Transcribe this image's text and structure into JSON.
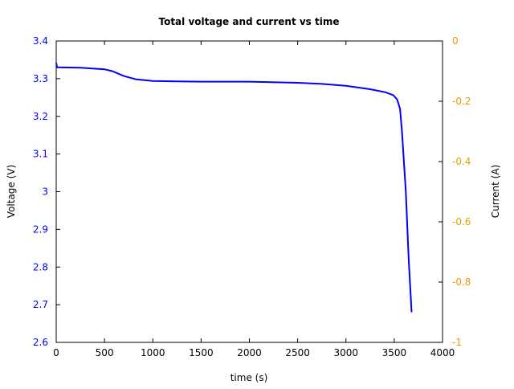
{
  "chart_data": {
    "type": "line",
    "title": "Total voltage and current vs time",
    "xlabel": "time (s)",
    "ylabel": "Voltage (V)",
    "y2label": "Current (A)",
    "xlim": [
      0,
      4000
    ],
    "ylim": [
      2.6,
      3.4
    ],
    "y2lim": [
      -1,
      0
    ],
    "xticks": [
      0,
      500,
      1000,
      1500,
      2000,
      2500,
      3000,
      3500,
      4000
    ],
    "yticks": [
      "2.6",
      "2.7",
      "2.8",
      "2.9",
      "3",
      "3.1",
      "3.2",
      "3.3",
      "3.4"
    ],
    "y2ticks": [
      "-1",
      "-0.8",
      "-0.6",
      "-0.4",
      "-0.2",
      "0"
    ],
    "grid": false,
    "colors": {
      "voltage": "#0000ff",
      "current_axis": "#e69f00"
    },
    "series": [
      {
        "axis": "left",
        "x": [
          0,
          10,
          250,
          500,
          580,
          700,
          830,
          1000,
          1250,
          1500,
          2000,
          2500,
          2750,
          3000,
          3250,
          3410,
          3490,
          3530,
          3560,
          3580,
          3620,
          3650,
          3680
        ],
        "y": [
          3.342,
          3.33,
          3.329,
          3.325,
          3.32,
          3.307,
          3.298,
          3.294,
          3.293,
          3.292,
          3.292,
          3.289,
          3.286,
          3.281,
          3.272,
          3.264,
          3.256,
          3.245,
          3.22,
          3.16,
          3.0,
          2.82,
          2.68
        ]
      }
    ]
  }
}
